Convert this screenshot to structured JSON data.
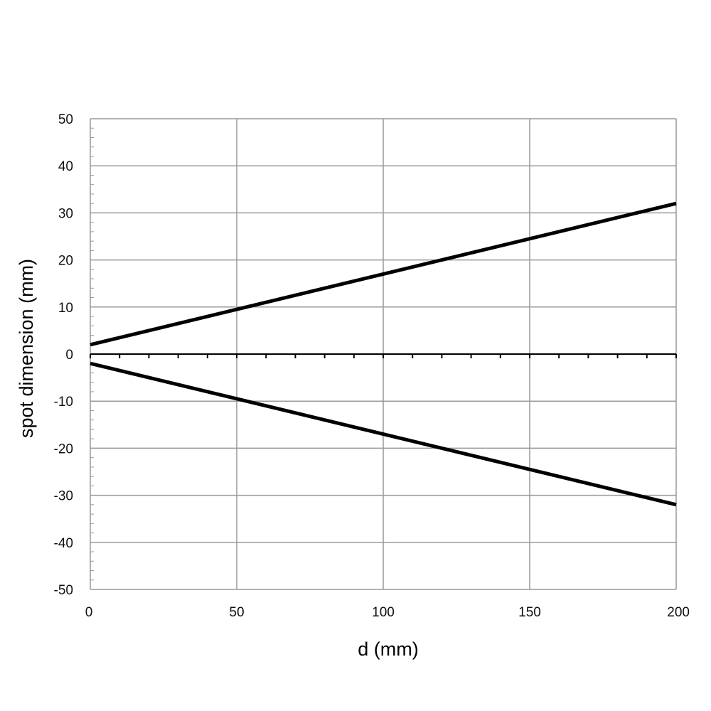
{
  "chart_data": {
    "type": "line",
    "title": "",
    "xlabel": "d (mm)",
    "ylabel": "spot dimension (mm)",
    "xlim": [
      0,
      200
    ],
    "ylim": [
      -50,
      50
    ],
    "x_ticks": [
      0,
      50,
      100,
      150,
      200
    ],
    "y_ticks": [
      50,
      40,
      30,
      20,
      10,
      0,
      -10,
      -20,
      -30,
      -40,
      -50
    ],
    "x_tick_labels": [
      "0",
      "50",
      "100",
      "150",
      "200"
    ],
    "y_tick_labels": [
      "50",
      "40",
      "30",
      "20",
      "10",
      "0",
      "-10",
      "-20",
      "-30",
      "-40",
      "-50"
    ],
    "grid": true,
    "legend": "none",
    "series": [
      {
        "x": [
          0,
          200
        ],
        "y": [
          2,
          32
        ],
        "color": "#000000"
      },
      {
        "x": [
          0,
          200
        ],
        "y": [
          -2,
          -32
        ],
        "color": "#000000"
      }
    ],
    "colors": {
      "grid": "#999999",
      "axis": "#000000",
      "line": "#000000"
    }
  }
}
